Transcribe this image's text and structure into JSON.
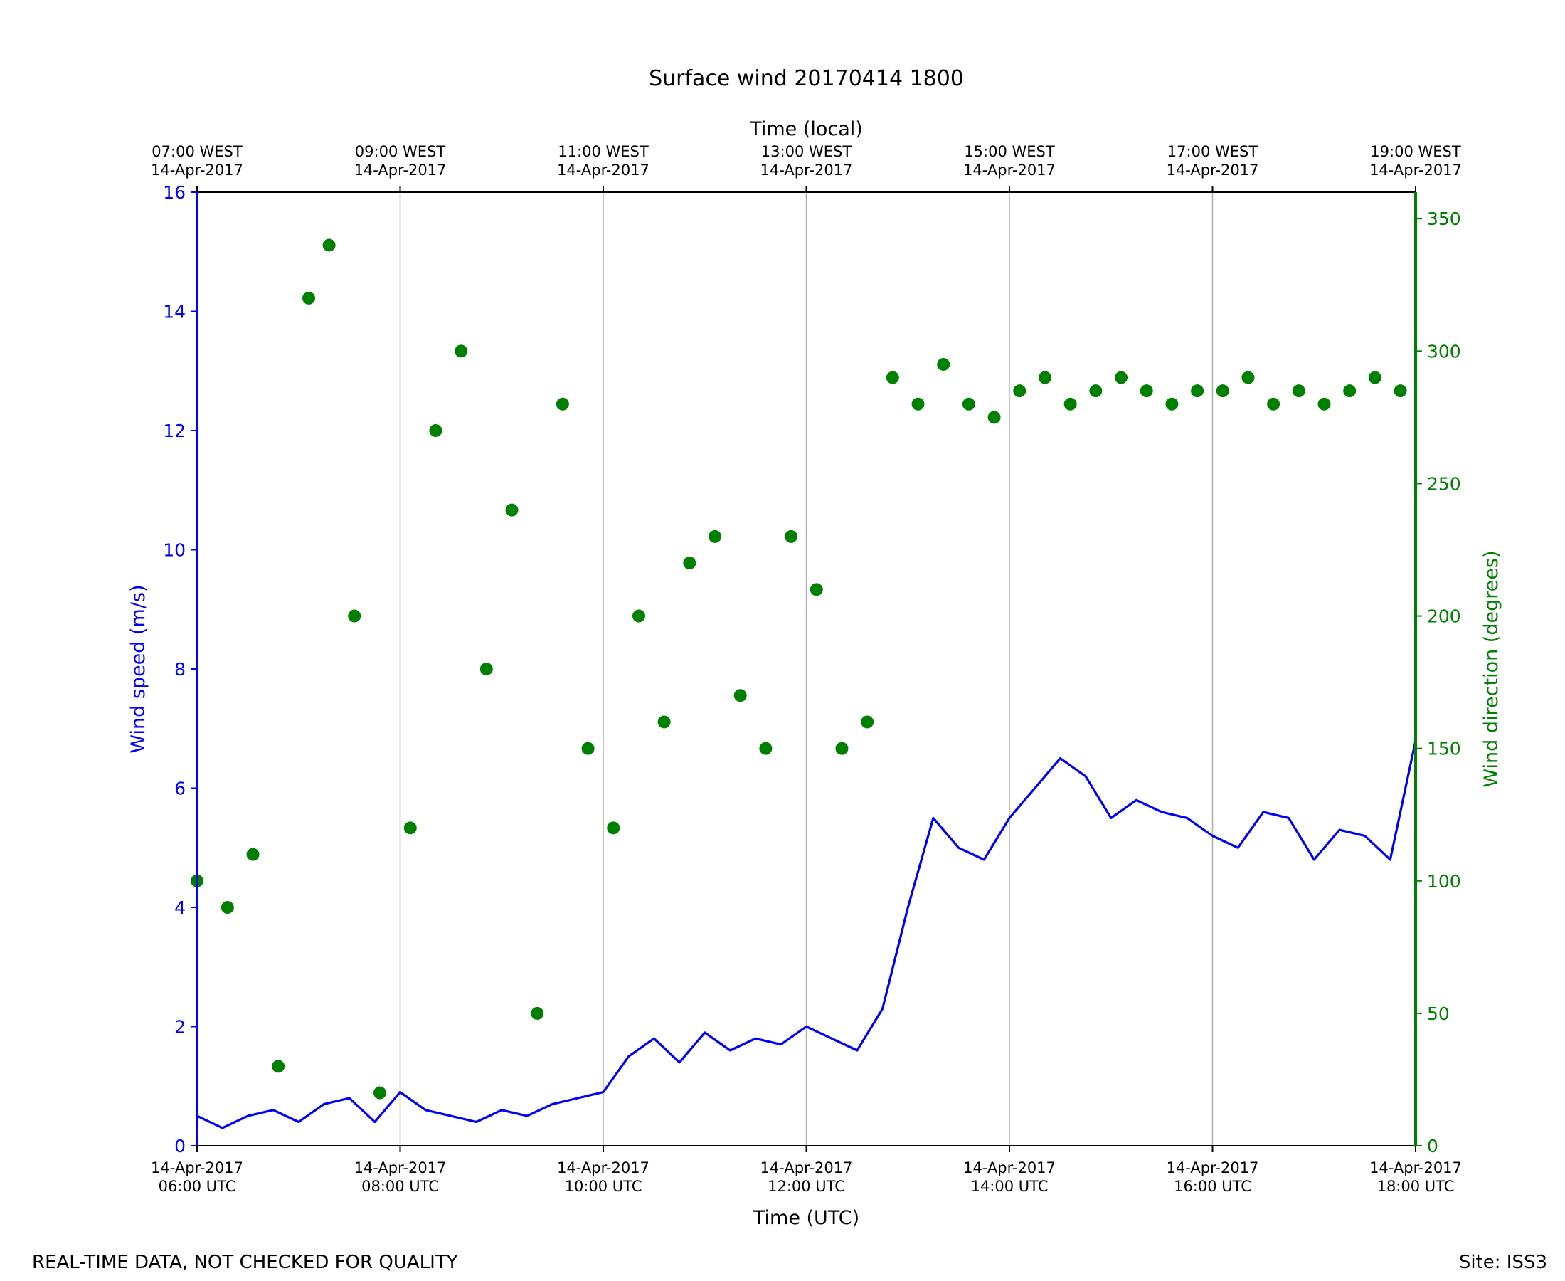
{
  "chart_data": {
    "type": "line+scatter",
    "title": "Surface wind 20170414 1800",
    "xlabel": "Time (UTC)",
    "top_xlabel": "Time (local)",
    "ylabel_left": "Wind speed (m/s)",
    "ylabel_right": "Wind direction (degrees)",
    "x_range_utc_hours": [
      6,
      18
    ],
    "ylim_left": [
      0,
      16
    ],
    "ylim_right": [
      0,
      360
    ],
    "grid": "vertical",
    "bottom_ticks": [
      {
        "line1": "14-Apr-2017",
        "line2": "06:00 UTC",
        "hour": 6
      },
      {
        "line1": "14-Apr-2017",
        "line2": "08:00 UTC",
        "hour": 8
      },
      {
        "line1": "14-Apr-2017",
        "line2": "10:00 UTC",
        "hour": 10
      },
      {
        "line1": "14-Apr-2017",
        "line2": "12:00 UTC",
        "hour": 12
      },
      {
        "line1": "14-Apr-2017",
        "line2": "14:00 UTC",
        "hour": 14
      },
      {
        "line1": "14-Apr-2017",
        "line2": "16:00 UTC",
        "hour": 16
      },
      {
        "line1": "14-Apr-2017",
        "line2": "18:00 UTC",
        "hour": 18
      }
    ],
    "top_ticks": [
      {
        "line1": "07:00 WEST",
        "line2": "14-Apr-2017",
        "hour": 6
      },
      {
        "line1": "09:00 WEST",
        "line2": "14-Apr-2017",
        "hour": 8
      },
      {
        "line1": "11:00 WEST",
        "line2": "14-Apr-2017",
        "hour": 10
      },
      {
        "line1": "13:00 WEST",
        "line2": "14-Apr-2017",
        "hour": 12
      },
      {
        "line1": "15:00 WEST",
        "line2": "14-Apr-2017",
        "hour": 14
      },
      {
        "line1": "17:00 WEST",
        "line2": "14-Apr-2017",
        "hour": 16
      },
      {
        "line1": "19:00 WEST",
        "line2": "14-Apr-2017",
        "hour": 18
      }
    ],
    "left_ticks": [
      "0",
      "2",
      "4",
      "6",
      "8",
      "10",
      "12",
      "14",
      "16"
    ],
    "right_ticks": [
      "0",
      "50",
      "100",
      "150",
      "200",
      "250",
      "300",
      "350"
    ],
    "series": [
      {
        "name": "Wind speed",
        "kind": "line",
        "axis": "left",
        "color": "#0000ff",
        "x_hours": [
          6.0,
          6.25,
          6.5,
          6.75,
          7.0,
          7.25,
          7.5,
          7.75,
          8.0,
          8.25,
          8.5,
          8.75,
          9.0,
          9.25,
          9.5,
          9.75,
          10.0,
          10.25,
          10.5,
          10.75,
          11.0,
          11.25,
          11.5,
          11.75,
          12.0,
          12.25,
          12.5,
          12.75,
          13.0,
          13.25,
          13.5,
          13.75,
          14.0,
          14.25,
          14.5,
          14.75,
          15.0,
          15.25,
          15.5,
          15.75,
          16.0,
          16.25,
          16.5,
          16.75,
          17.0,
          17.25,
          17.5,
          17.75,
          18.0
        ],
        "values": [
          0.5,
          0.3,
          0.5,
          0.6,
          0.4,
          0.7,
          0.8,
          0.4,
          0.9,
          0.6,
          0.5,
          0.4,
          0.6,
          0.5,
          0.7,
          0.8,
          0.9,
          1.5,
          1.8,
          1.4,
          1.9,
          1.6,
          1.8,
          1.7,
          2.0,
          1.8,
          1.6,
          2.3,
          4.0,
          5.5,
          5.0,
          4.8,
          5.5,
          6.0,
          6.5,
          6.2,
          5.5,
          5.8,
          5.6,
          5.5,
          5.2,
          5.0,
          5.6,
          5.5,
          4.8,
          5.3,
          5.2,
          4.8,
          6.8
        ]
      },
      {
        "name": "Wind direction",
        "kind": "scatter",
        "axis": "right",
        "color": "#008000",
        "x_hours": [
          6.0,
          6.3,
          6.55,
          6.8,
          7.1,
          7.3,
          7.55,
          7.8,
          8.1,
          8.35,
          8.6,
          8.85,
          9.1,
          9.35,
          9.6,
          9.85,
          10.1,
          10.35,
          10.6,
          10.85,
          11.1,
          11.35,
          11.6,
          11.85,
          12.1,
          12.35,
          12.6,
          12.85,
          13.1,
          13.35,
          13.6,
          13.85,
          14.1,
          14.35,
          14.6,
          14.85,
          15.1,
          15.35,
          15.6,
          15.85,
          16.1,
          16.35,
          16.6,
          16.85,
          17.1,
          17.35,
          17.6,
          17.85
        ],
        "values": [
          100,
          90,
          110,
          30,
          320,
          340,
          200,
          20,
          120,
          270,
          300,
          180,
          240,
          50,
          280,
          150,
          120,
          200,
          160,
          220,
          230,
          170,
          150,
          230,
          210,
          150,
          160,
          290,
          280,
          295,
          280,
          275,
          285,
          290,
          280,
          285,
          290,
          285,
          280,
          285,
          285,
          290,
          280,
          285,
          280,
          285,
          290,
          285
        ]
      }
    ],
    "footer_left": "REAL-TIME DATA, NOT CHECKED FOR QUALITY",
    "footer_right": "Site: ISS3"
  }
}
